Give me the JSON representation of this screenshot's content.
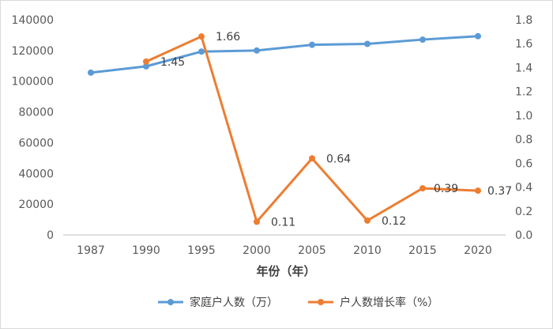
{
  "chart_data": {
    "type": "line",
    "xlabel": "年份（年）",
    "categories": [
      "1987",
      "1990",
      "1995",
      "2000",
      "2005",
      "2010",
      "2015",
      "2020"
    ],
    "y_left": {
      "ylim": [
        0,
        140000
      ],
      "ticks": [
        "0",
        "20000",
        "40000",
        "60000",
        "80000",
        "100000",
        "120000",
        "140000"
      ]
    },
    "y_right": {
      "ylim": [
        0,
        1.8
      ],
      "ticks": [
        "0.0",
        "0.2",
        "0.4",
        "0.6",
        "0.8",
        "1.0",
        "1.2",
        "1.4",
        "1.6",
        "1.8"
      ]
    },
    "series": [
      {
        "name": "家庭户人数（万）",
        "axis": "left",
        "color": "#5B9BD5",
        "values": [
          105600,
          109700,
          119300,
          120000,
          123700,
          124300,
          127100,
          129300
        ]
      },
      {
        "name": "户人数增长率（%）",
        "axis": "right",
        "color": "#ED7D31",
        "values": [
          null,
          1.45,
          1.66,
          0.11,
          0.64,
          0.12,
          0.39,
          0.37
        ],
        "labels": [
          "",
          "1.45",
          "1.66",
          "0.11",
          "0.64",
          "0.12",
          "0.39",
          "0.37"
        ]
      }
    ],
    "grid": false,
    "legend": "bottom"
  }
}
